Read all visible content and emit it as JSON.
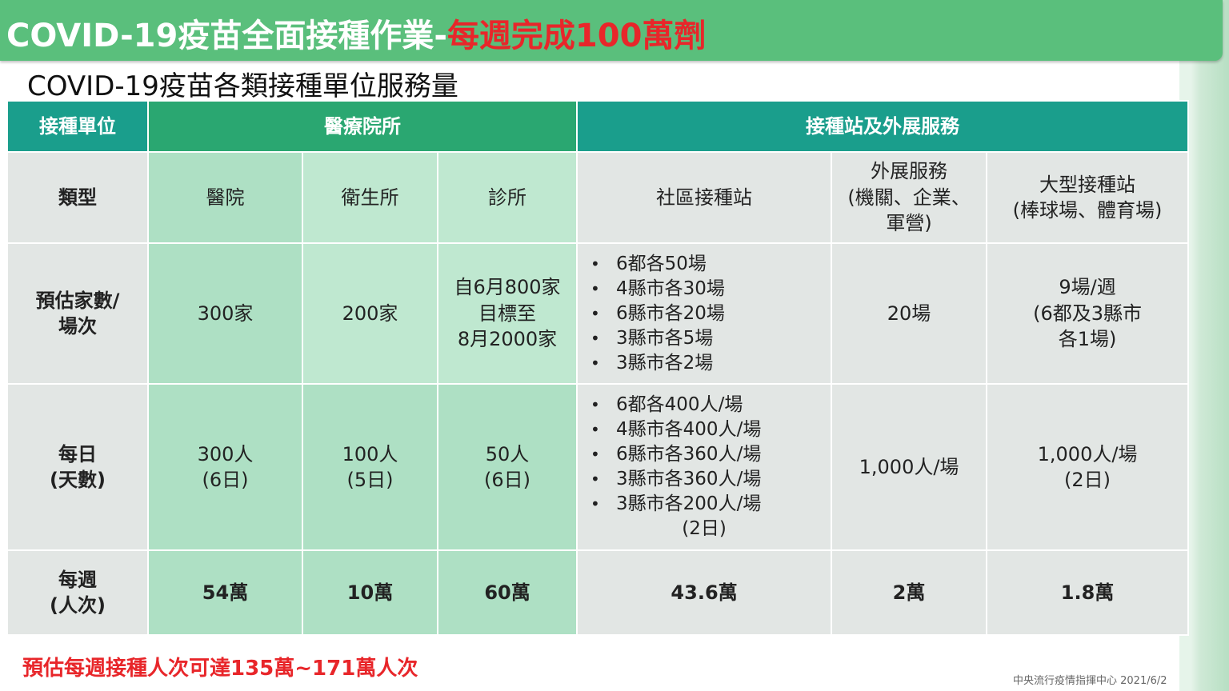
{
  "header": {
    "title_main": "COVID-19疫苗全面接種作業-",
    "title_highlight": "每週完成100萬劑",
    "subtitle": "COVID-19疫苗各類接種單位服務量"
  },
  "table": {
    "group_headers": {
      "unit": "接種單位",
      "medical": "醫療院所",
      "station": "接種站及外展服務"
    },
    "row_labels": {
      "type": "類型",
      "estimate_l1": "預估家數/",
      "estimate_l2": "場次",
      "daily_l1": "每日",
      "daily_l2": "(天數)",
      "weekly_l1": "每週",
      "weekly_l2": "(人次)"
    },
    "types": {
      "hospital": "醫院",
      "health_center": "衛生所",
      "clinic": "診所",
      "community": "社區接種站",
      "outreach_l1": "外展服務",
      "outreach_l2": "(機關、企業、",
      "outreach_l3": "軍營)",
      "large_l1": "大型接種站",
      "large_l2": "(棒球場、體育場)"
    },
    "estimate": {
      "hospital": "300家",
      "health_center": "200家",
      "clinic_l1": "自6月800家",
      "clinic_l2": "目標至",
      "clinic_l3": "8月2000家",
      "community": [
        "6都各50場",
        "4縣市各30場",
        "6縣市各20場",
        "3縣市各5場",
        "3縣市各2場"
      ],
      "outreach": "20場",
      "large_l1": "9場/週",
      "large_l2": "(6都及3縣市",
      "large_l3": "各1場)"
    },
    "daily": {
      "hospital_l1": "300人",
      "hospital_l2": "(6日)",
      "health_center_l1": "100人",
      "health_center_l2": "(5日)",
      "clinic_l1": "50人",
      "clinic_l2": "(6日)",
      "community": [
        "6都各400人/場",
        "4縣市各400人/場",
        "6縣市各360人/場",
        "3縣市各360人/場",
        "3縣市各200人/場"
      ],
      "community_tail": "(2日)",
      "outreach": "1,000人/場",
      "large_l1": "1,000人/場",
      "large_l2": "(2日)"
    },
    "weekly": {
      "hospital": "54萬",
      "health_center": "10萬",
      "clinic": "60萬",
      "community": "43.6萬",
      "outreach": "2萬",
      "large": "1.8萬"
    }
  },
  "footer": {
    "note": "預估每週接種人次可達135萬~171萬人次",
    "source": "中央流行疫情指揮中心 2021/6/2"
  },
  "colors": {
    "banner": "#5abf7c",
    "header_teal": "#1a9e8c",
    "header_green": "#2aa771",
    "accent_red": "#e8262a",
    "medical_cell": "#aee0c4",
    "station_cell": "#e2e6e4"
  }
}
